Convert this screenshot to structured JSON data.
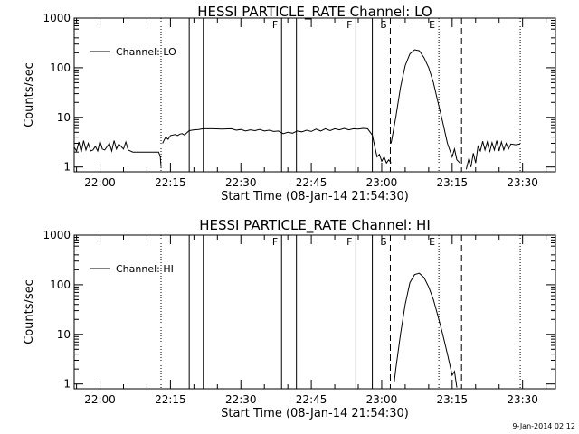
{
  "stamp": "9-Jan-2014 02:12",
  "chart_data": [
    {
      "type": "line",
      "title": "HESSI PARTICLE_RATE Channel: LO",
      "xlabel": "Start Time (08-Jan-14 21:54:30)",
      "ylabel": "Counts/sec",
      "yscale": "log",
      "ylim": [
        0.8,
        1000
      ],
      "yticks": [
        1,
        10,
        100,
        1000
      ],
      "ytick_labels": [
        "1",
        "10",
        "100",
        "1000"
      ],
      "xlim": [
        "21:54:30",
        "23:37:00"
      ],
      "xticks": [
        "22:00",
        "22:15",
        "22:30",
        "22:45",
        "23:00",
        "23:15",
        "23:30"
      ],
      "legend": {
        "label": "Channel: LO",
        "position": "top-left"
      },
      "markers": [
        {
          "time": "22:13:00",
          "style": "dotted",
          "label": ""
        },
        {
          "time": "22:19:00",
          "style": "solid",
          "label": ""
        },
        {
          "time": "22:22:00",
          "style": "solid",
          "label": ""
        },
        {
          "time": "22:38:40",
          "style": "solid",
          "label": "F"
        },
        {
          "time": "22:41:50",
          "style": "solid",
          "label": ""
        },
        {
          "time": "22:54:30",
          "style": "solid",
          "label": "F"
        },
        {
          "time": "22:58:00",
          "style": "solid",
          "label": ""
        },
        {
          "time": "23:01:50",
          "style": "dashed",
          "label": "S"
        },
        {
          "time": "23:12:10",
          "style": "dotted",
          "label": "E"
        },
        {
          "time": "23:17:00",
          "style": "dashed",
          "label": ""
        },
        {
          "time": "23:29:30",
          "style": "dotted",
          "label": ""
        }
      ],
      "series": [
        {
          "name": "Channel: LO",
          "segments": [
            [
              [
                "21:54:30",
                2.5
              ],
              [
                "21:55:00",
                2.1
              ],
              [
                "21:55:30",
                3.2
              ],
              [
                "21:56:00",
                2.0
              ],
              [
                "21:56:30",
                3.4
              ],
              [
                "21:57:00",
                2.2
              ],
              [
                "21:57:30",
                3.0
              ],
              [
                "21:58:00",
                2.1
              ],
              [
                "21:58:30",
                2.2
              ],
              [
                "21:59:00",
                2.6
              ],
              [
                "21:59:30",
                2.1
              ],
              [
                "22:00:00",
                3.3
              ],
              [
                "22:00:30",
                2.3
              ],
              [
                "22:01:00",
                2.2
              ],
              [
                "22:02:00",
                3.0
              ],
              [
                "22:02:30",
                2.1
              ],
              [
                "22:03:00",
                3.4
              ],
              [
                "22:03:30",
                2.3
              ],
              [
                "22:04:00",
                2.9
              ],
              [
                "22:05:00",
                2.3
              ],
              [
                "22:05:30",
                3.2
              ],
              [
                "22:06:00",
                2.2
              ],
              [
                "22:07:00",
                2.0
              ],
              [
                "22:08:00",
                2.0
              ],
              [
                "22:09:00",
                2.0
              ],
              [
                "22:10:00",
                2.0
              ],
              [
                "22:11:00",
                2.0
              ],
              [
                "22:12:00",
                2.0
              ],
              [
                "22:12:30",
                2.0
              ],
              [
                "22:12:50",
                1.6
              ],
              [
                "22:13:00",
                1.0
              ]
            ],
            [
              [
                "22:13:20",
                3.0
              ],
              [
                "22:13:40",
                3.5
              ],
              [
                "22:14:00",
                4.0
              ],
              [
                "22:14:30",
                3.6
              ],
              [
                "22:15:00",
                4.3
              ],
              [
                "22:16:00",
                4.5
              ],
              [
                "22:16:30",
                4.3
              ],
              [
                "22:17:00",
                4.6
              ],
              [
                "22:17:30",
                4.7
              ],
              [
                "22:18:00",
                4.4
              ],
              [
                "22:18:30",
                4.9
              ],
              [
                "22:19:00",
                5.4
              ],
              [
                "22:20:00",
                5.6
              ],
              [
                "22:21:00",
                5.7
              ],
              [
                "22:22:00",
                5.9
              ],
              [
                "22:24:00",
                5.9
              ],
              [
                "22:26:00",
                5.8
              ],
              [
                "22:28:00",
                5.9
              ],
              [
                "22:29:00",
                5.5
              ],
              [
                "22:30:00",
                5.7
              ],
              [
                "22:31:00",
                5.3
              ],
              [
                "22:32:00",
                5.6
              ],
              [
                "22:33:00",
                5.4
              ],
              [
                "22:34:00",
                5.7
              ],
              [
                "22:35:00",
                5.3
              ],
              [
                "22:36:00",
                5.5
              ],
              [
                "22:37:00",
                5.2
              ],
              [
                "22:38:00",
                5.3
              ],
              [
                "22:39:00",
                4.7
              ],
              [
                "22:40:00",
                5.0
              ],
              [
                "22:41:00",
                4.8
              ],
              [
                "22:42:00",
                5.3
              ],
              [
                "22:43:00",
                5.1
              ],
              [
                "22:44:00",
                5.5
              ],
              [
                "22:45:00",
                5.2
              ],
              [
                "22:46:00",
                5.8
              ],
              [
                "22:47:00",
                5.3
              ],
              [
                "22:48:00",
                5.9
              ],
              [
                "22:49:00",
                5.4
              ],
              [
                "22:50:00",
                5.9
              ],
              [
                "22:51:00",
                5.6
              ],
              [
                "22:52:00",
                6.0
              ],
              [
                "22:53:00",
                5.6
              ],
              [
                "22:54:00",
                5.9
              ],
              [
                "22:55:00",
                5.8
              ],
              [
                "22:56:00",
                6.0
              ],
              [
                "22:57:00",
                5.9
              ],
              [
                "22:58:00",
                4.4
              ],
              [
                "22:58:30",
                2.6
              ],
              [
                "22:59:00",
                1.6
              ],
              [
                "22:59:30",
                1.8
              ],
              [
                "23:00:00",
                1.3
              ],
              [
                "23:00:30",
                1.6
              ],
              [
                "23:01:00",
                1.2
              ],
              [
                "23:01:30",
                1.4
              ],
              [
                "23:02:00",
                1.2
              ]
            ],
            [
              [
                "23:02:00",
                3.0
              ],
              [
                "23:03:00",
                10
              ],
              [
                "23:04:00",
                40
              ],
              [
                "23:05:00",
                110
              ],
              [
                "23:06:00",
                190
              ],
              [
                "23:07:00",
                230
              ],
              [
                "23:08:00",
                220
              ],
              [
                "23:09:00",
                160
              ],
              [
                "23:10:00",
                100
              ],
              [
                "23:11:00",
                50
              ],
              [
                "23:12:00",
                20
              ],
              [
                "23:13:00",
                8.0
              ],
              [
                "23:14:00",
                3.0
              ],
              [
                "23:15:00",
                1.6
              ],
              [
                "23:15:30",
                2.3
              ],
              [
                "23:16:00",
                1.4
              ],
              [
                "23:16:40",
                1.2
              ]
            ],
            [
              [
                "23:18:00",
                0.9
              ],
              [
                "23:18:30",
                1.4
              ],
              [
                "23:19:00",
                1.0
              ],
              [
                "23:19:30",
                1.9
              ],
              [
                "23:20:00",
                1.2
              ],
              [
                "23:20:30",
                2.6
              ],
              [
                "23:21:00",
                2.1
              ],
              [
                "23:21:30",
                3.3
              ],
              [
                "23:22:00",
                2.2
              ],
              [
                "23:22:30",
                3.2
              ],
              [
                "23:23:00",
                2.0
              ],
              [
                "23:23:30",
                3.1
              ],
              [
                "23:24:00",
                2.2
              ],
              [
                "23:24:30",
                3.4
              ],
              [
                "23:25:00",
                2.1
              ],
              [
                "23:25:30",
                3.2
              ],
              [
                "23:26:00",
                2.2
              ],
              [
                "23:26:30",
                3.0
              ],
              [
                "23:27:00",
                2.3
              ],
              [
                "23:27:30",
                2.9
              ],
              [
                "23:28:30",
                2.8
              ],
              [
                "23:29:30",
                2.9
              ]
            ]
          ]
        }
      ]
    },
    {
      "type": "line",
      "title": "HESSI PARTICLE_RATE Channel: HI",
      "xlabel": "Start Time (08-Jan-14 21:54:30)",
      "ylabel": "Counts/sec",
      "yscale": "log",
      "ylim": [
        0.8,
        1000
      ],
      "yticks": [
        1,
        10,
        100,
        1000
      ],
      "ytick_labels": [
        "1",
        "10",
        "100",
        "1000"
      ],
      "xlim": [
        "21:54:30",
        "23:37:00"
      ],
      "xticks": [
        "22:00",
        "22:15",
        "22:30",
        "22:45",
        "23:00",
        "23:15",
        "23:30"
      ],
      "legend": {
        "label": "Channel: HI",
        "position": "top-left"
      },
      "markers": [
        {
          "time": "22:13:00",
          "style": "dotted",
          "label": ""
        },
        {
          "time": "22:19:00",
          "style": "solid",
          "label": ""
        },
        {
          "time": "22:22:00",
          "style": "solid",
          "label": ""
        },
        {
          "time": "22:38:40",
          "style": "solid",
          "label": "F"
        },
        {
          "time": "22:41:50",
          "style": "solid",
          "label": ""
        },
        {
          "time": "22:54:30",
          "style": "solid",
          "label": "F"
        },
        {
          "time": "22:58:00",
          "style": "solid",
          "label": ""
        },
        {
          "time": "23:01:50",
          "style": "dashed",
          "label": "S"
        },
        {
          "time": "23:12:10",
          "style": "dotted",
          "label": "E"
        },
        {
          "time": "23:17:00",
          "style": "dashed",
          "label": ""
        },
        {
          "time": "23:29:30",
          "style": "dotted",
          "label": ""
        }
      ],
      "series": [
        {
          "name": "Channel: HI",
          "segments": [
            [
              [
                "23:02:40",
                1.1
              ],
              [
                "23:03:00",
                2.0
              ],
              [
                "23:04:00",
                10
              ],
              [
                "23:05:00",
                40
              ],
              [
                "23:06:00",
                110
              ],
              [
                "23:07:00",
                160
              ],
              [
                "23:08:00",
                170
              ],
              [
                "23:09:00",
                140
              ],
              [
                "23:10:00",
                90
              ],
              [
                "23:11:00",
                50
              ],
              [
                "23:12:00",
                23
              ],
              [
                "23:13:00",
                10
              ],
              [
                "23:14:00",
                4.0
              ],
              [
                "23:15:00",
                1.5
              ],
              [
                "23:15:30",
                1.8
              ],
              [
                "23:16:00",
                0.85
              ]
            ]
          ]
        }
      ]
    }
  ]
}
